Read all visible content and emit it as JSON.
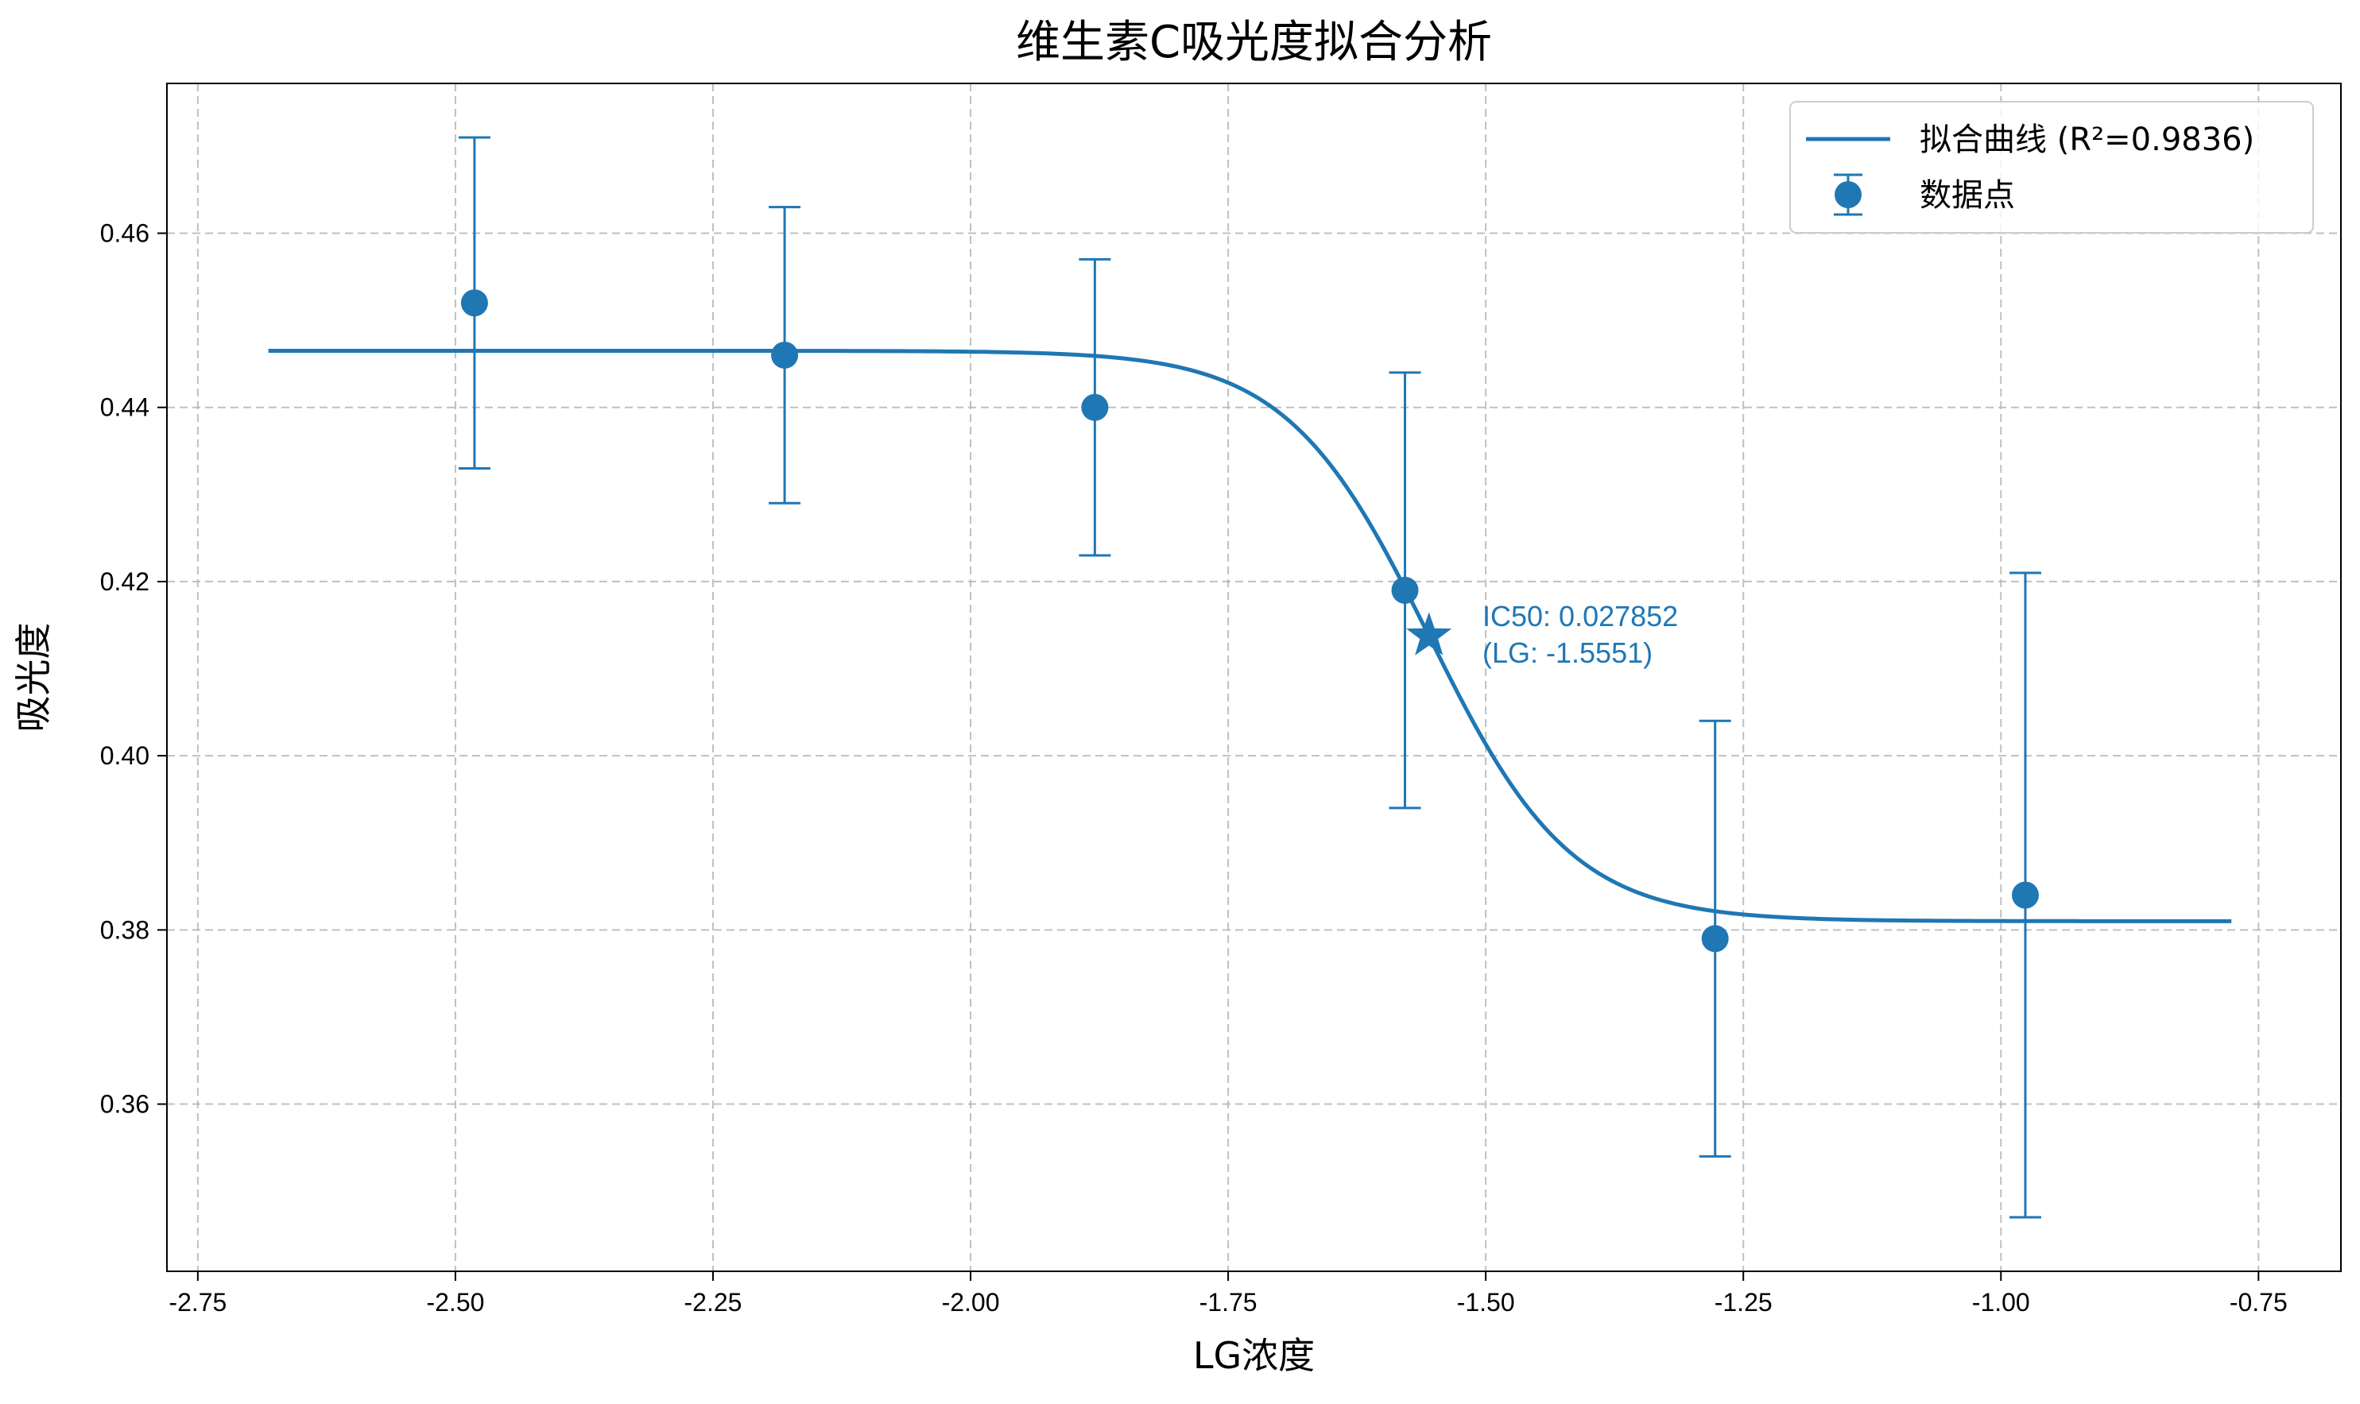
{
  "chart_data": {
    "type": "scatter",
    "title": "维生素C吸光度拟合分析",
    "xlabel": "LG浓度",
    "ylabel": "吸光度",
    "xlim": [
      -2.78,
      -0.67
    ],
    "ylim": [
      0.3408,
      0.4772
    ],
    "x_ticks": [
      -2.75,
      -2.5,
      -2.25,
      -2.0,
      -1.75,
      -1.5,
      -1.25,
      -1.0,
      -0.75
    ],
    "x_tick_labels": [
      "-2.75",
      "-2.50",
      "-2.25",
      "-2.00",
      "-1.75",
      "-1.50",
      "-1.25",
      "-1.00",
      "-0.75"
    ],
    "y_ticks": [
      0.36,
      0.38,
      0.4,
      0.42,
      0.44,
      0.46
    ],
    "y_tick_labels": [
      "0.36",
      "0.38",
      "0.40",
      "0.42",
      "0.44",
      "0.46"
    ],
    "grid": true,
    "legend_placement": "top-right",
    "color": "#1f77b4",
    "series": [
      {
        "name": "数据点",
        "kind": "errorbar",
        "x": [
          -2.4815,
          -2.1805,
          -1.8794,
          -1.5784,
          -1.2774,
          -0.9763
        ],
        "y": [
          0.452,
          0.446,
          0.44,
          0.419,
          0.379,
          0.384
        ],
        "yerr_low": [
          0.433,
          0.429,
          0.423,
          0.394,
          0.354,
          0.347
        ],
        "yerr_high": [
          0.471,
          0.463,
          0.457,
          0.444,
          0.404,
          0.421
        ]
      },
      {
        "name": "拟合曲线 (R²=0.9836)",
        "kind": "line",
        "model": "sigmoid",
        "top": 0.4465,
        "bottom": 0.381,
        "x50": -1.5551,
        "slope": 14.5,
        "x_range": [
          -2.6815,
          -0.7763
        ]
      }
    ],
    "ic50_marker": {
      "x": -1.5551,
      "y": 0.41375,
      "label_line1": "IC50: 0.027852",
      "label_line2": "(LG: -1.5551)"
    }
  }
}
